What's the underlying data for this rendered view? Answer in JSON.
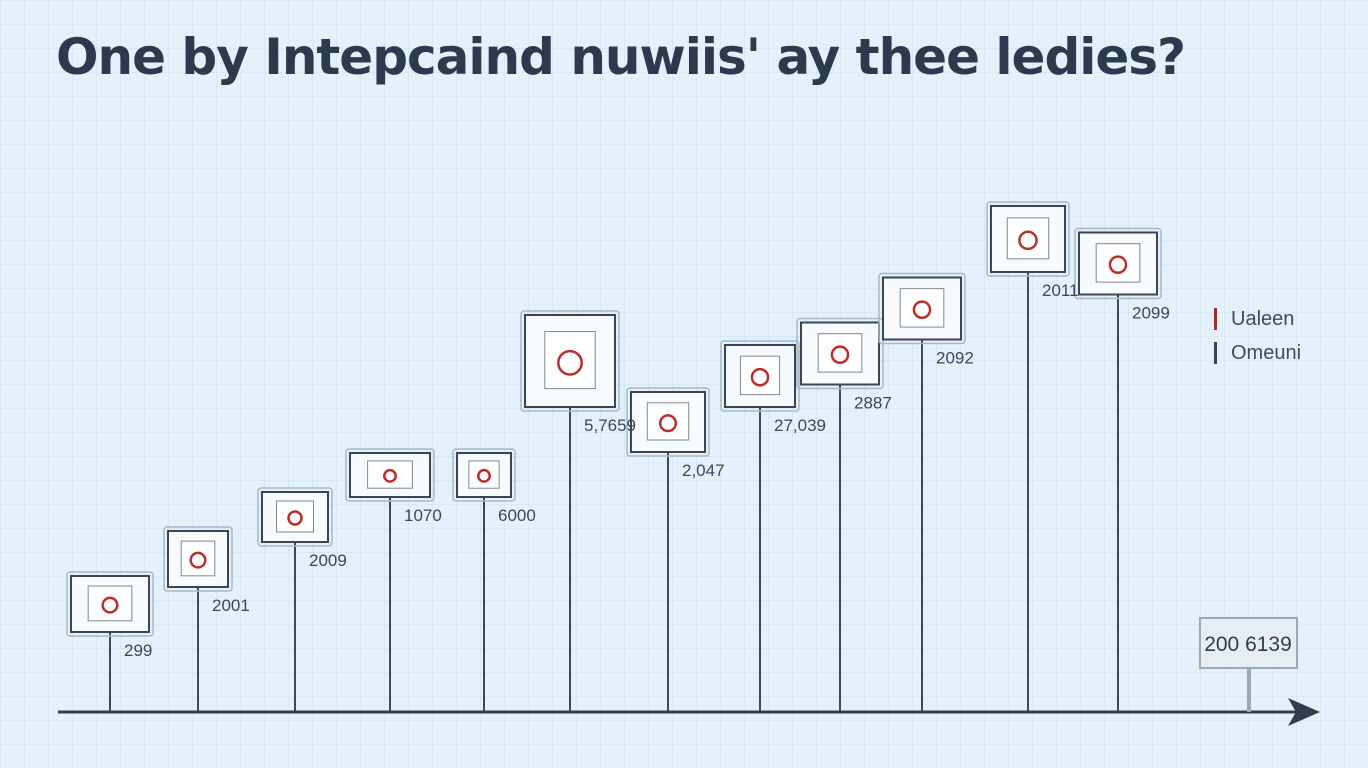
{
  "chart_data": {
    "type": "timeline",
    "title": "One by Intepcaind nuwiis' ay thee ledies?",
    "colors": {
      "axis": "#2f3d4f",
      "stem": "#3d4a5a",
      "frame": "#3a4656",
      "accent": "#b8302e",
      "legend_primary": "#a22b2b",
      "legend_secondary": "#3a4656"
    },
    "legend": {
      "position": "right",
      "items": [
        {
          "label": "Ualeen",
          "color": "#a22b2b"
        },
        {
          "label": "Omeuni",
          "color": "#3a4656"
        }
      ]
    },
    "events": [
      {
        "label": "299",
        "height": 1
      },
      {
        "label": "2001",
        "height": 2
      },
      {
        "label": "2009",
        "height": 3
      },
      {
        "label": "1070",
        "height": 4
      },
      {
        "label": "6000",
        "height": 4
      },
      {
        "label": "5,7659",
        "height": 6
      },
      {
        "label": "2,047",
        "height": 5
      },
      {
        "label": "27,039",
        "height": 6
      },
      {
        "label": "2887",
        "height": 6.5
      },
      {
        "label": "2092",
        "height": 7.5
      },
      {
        "label": "2011",
        "height": 9
      },
      {
        "label": "2099",
        "height": 8.5
      }
    ],
    "end_label": "200 6139"
  }
}
